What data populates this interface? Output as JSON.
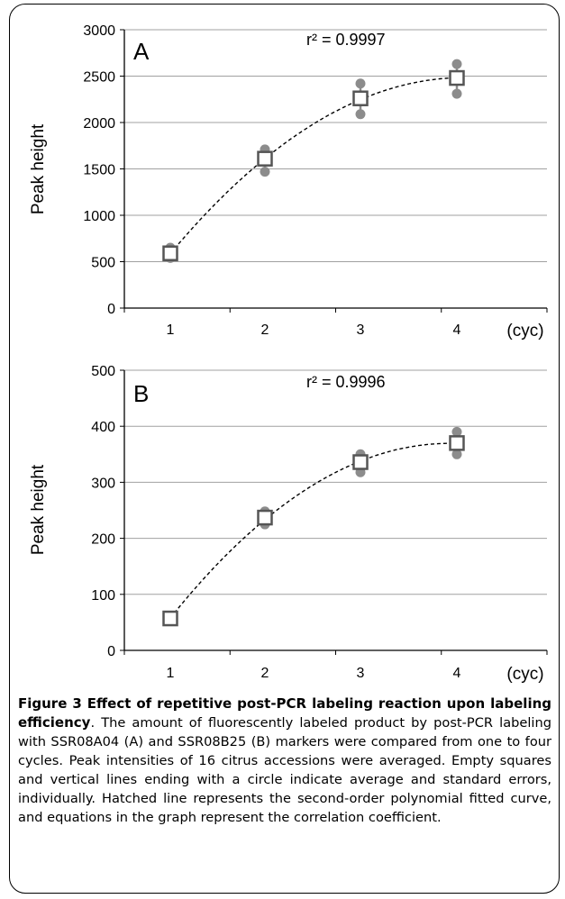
{
  "caption": {
    "title": "Figure 3 Effect of repetitive post-PCR labeling reaction upon labeling efficiency",
    "body": ". The amount of fluorescently labeled product by post-PCR labeling with SSR08A04 (A) and SSR08B25 (B) markers were compared from one to four cycles. Peak intensities of 16 citrus accessions were averaged. Empty squares and vertical lines ending with a circle indicate average and standard errors, individually. Hatched line represents the second-order polynomial fitted curve, and equations in the graph represent the correlation coefficient."
  },
  "colors": {
    "grid": "#a0a0a0",
    "marker_fill": "#ffffff",
    "marker_stroke": "#555555",
    "error_dot": "#8c8c8c",
    "fit_line": "#000000"
  },
  "chart_data": [
    {
      "type": "scatter",
      "panel_label": "A",
      "annotation": "r² = 0.9997",
      "ylabel": "Peak height",
      "xlabel": "(cyc)",
      "categories": [
        "1",
        "2",
        "3",
        "4"
      ],
      "ylim": [
        0,
        3000
      ],
      "yticks": [
        0,
        500,
        1000,
        1500,
        2000,
        2500,
        3000
      ],
      "mean": [
        590,
        1610,
        2260,
        2480
      ],
      "error_points": [
        [
          540,
          650
        ],
        [
          1470,
          1710
        ],
        [
          2090,
          2420
        ],
        [
          2310,
          2630
        ]
      ],
      "fit": "second-order polynomial (dashed)",
      "grid": true
    },
    {
      "type": "scatter",
      "panel_label": "B",
      "annotation": "r² = 0.9996",
      "ylabel": "Peak height",
      "xlabel": "(cyc)",
      "categories": [
        "1",
        "2",
        "3",
        "4"
      ],
      "ylim": [
        0,
        500
      ],
      "yticks": [
        0,
        100,
        200,
        300,
        400,
        500
      ],
      "mean": [
        57,
        237,
        336,
        370
      ],
      "error_points": [
        [
          55,
          59
        ],
        [
          225,
          248
        ],
        [
          318,
          350
        ],
        [
          350,
          390
        ]
      ],
      "fit": "second-order polynomial (dashed)",
      "grid": true
    }
  ]
}
